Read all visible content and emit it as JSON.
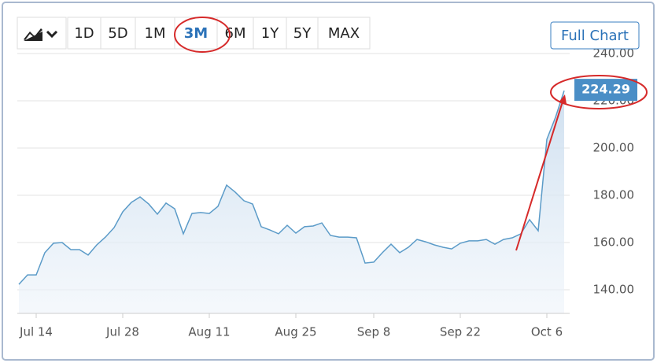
{
  "ui": {
    "periods": [
      {
        "label": "1D",
        "active": false
      },
      {
        "label": "5D",
        "active": false
      },
      {
        "label": "1M",
        "active": false
      },
      {
        "label": "3M",
        "active": true
      },
      {
        "label": "6M",
        "active": false
      },
      {
        "label": "1Y",
        "active": false
      },
      {
        "label": "5Y",
        "active": false
      },
      {
        "label": "MAX",
        "active": false
      }
    ],
    "full_chart": "Full Chart"
  },
  "chart_data": {
    "type": "line",
    "color": "#5b9bc8",
    "categories": [
      null,
      null,
      "Jul 14",
      null,
      null,
      null,
      null,
      null,
      null,
      null,
      null,
      null,
      "Jul 28",
      null,
      null,
      null,
      null,
      null,
      null,
      null,
      null,
      null,
      "Aug 11",
      null,
      null,
      null,
      null,
      null,
      null,
      null,
      null,
      null,
      "Aug 25",
      null,
      null,
      null,
      null,
      null,
      null,
      null,
      null,
      "Sep 8",
      null,
      null,
      null,
      null,
      null,
      null,
      null,
      null,
      null,
      "Sep 22",
      null,
      null,
      null,
      null,
      null,
      null,
      null,
      null,
      null,
      "Oct 6",
      null,
      null
    ],
    "values": [
      142.3,
      146.3,
      146.3,
      155.7,
      159.7,
      160,
      157,
      157,
      154.7,
      159,
      162.3,
      166.3,
      173,
      177,
      179.3,
      176.3,
      172,
      176.7,
      174.3,
      163.7,
      172.3,
      172.7,
      172.3,
      175.3,
      184.3,
      181.3,
      177.7,
      176.3,
      166.7,
      165.3,
      163.7,
      167.3,
      164,
      166.7,
      167,
      168.3,
      163,
      162.3,
      162.3,
      162,
      151.3,
      151.7,
      155.7,
      159.3,
      155.7,
      158,
      161.3,
      160.3,
      159,
      158,
      157.3,
      159.7,
      160.7,
      160.7,
      161.3,
      159.3,
      161.3,
      162,
      163.7,
      169.7,
      165,
      203.7,
      213,
      224.29
    ],
    "ylim": [
      130,
      242
    ],
    "yticks": [
      {
        "value": 140,
        "label": "140.00"
      },
      {
        "value": 160,
        "label": "160.00"
      },
      {
        "value": 180,
        "label": "180.00"
      },
      {
        "value": 200,
        "label": "200.00"
      },
      {
        "value": 220,
        "label": "220.00"
      },
      {
        "value": 240,
        "label": "240.00"
      }
    ],
    "grid": true
  }
}
